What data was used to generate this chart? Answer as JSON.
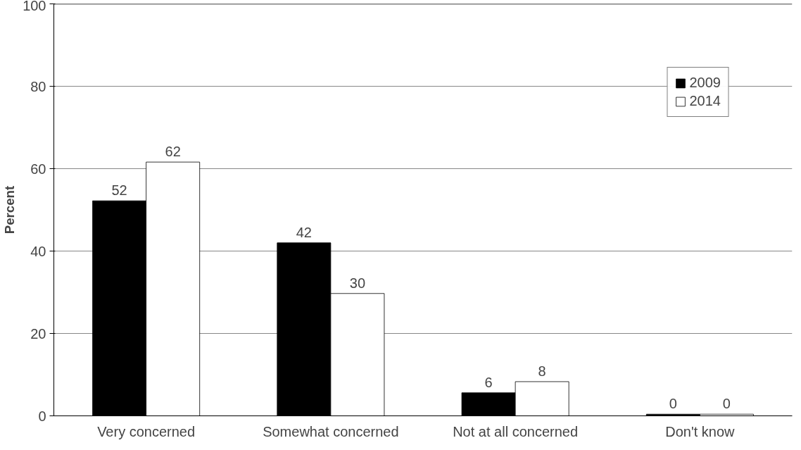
{
  "chart_data": {
    "type": "bar",
    "ylabel": "Percent",
    "categories": [
      "Very concerned",
      "Somewhat concerned",
      "Not at all concerned",
      "Don't know"
    ],
    "series": [
      {
        "name": "2009",
        "color": "#000000",
        "values": [
          52.2,
          42,
          5.6,
          0.4
        ],
        "value_labels": [
          "52",
          "42",
          "6",
          "0"
        ]
      },
      {
        "name": "2014",
        "color": "#ffffff",
        "values": [
          61.6,
          29.7,
          8.3,
          0.4
        ],
        "value_labels": [
          "62",
          "30",
          "8",
          "0"
        ]
      }
    ],
    "ylim": [
      0,
      100
    ],
    "yticks": [
      0,
      20,
      40,
      60,
      80,
      100
    ],
    "grid": "y",
    "legend": "top right"
  }
}
